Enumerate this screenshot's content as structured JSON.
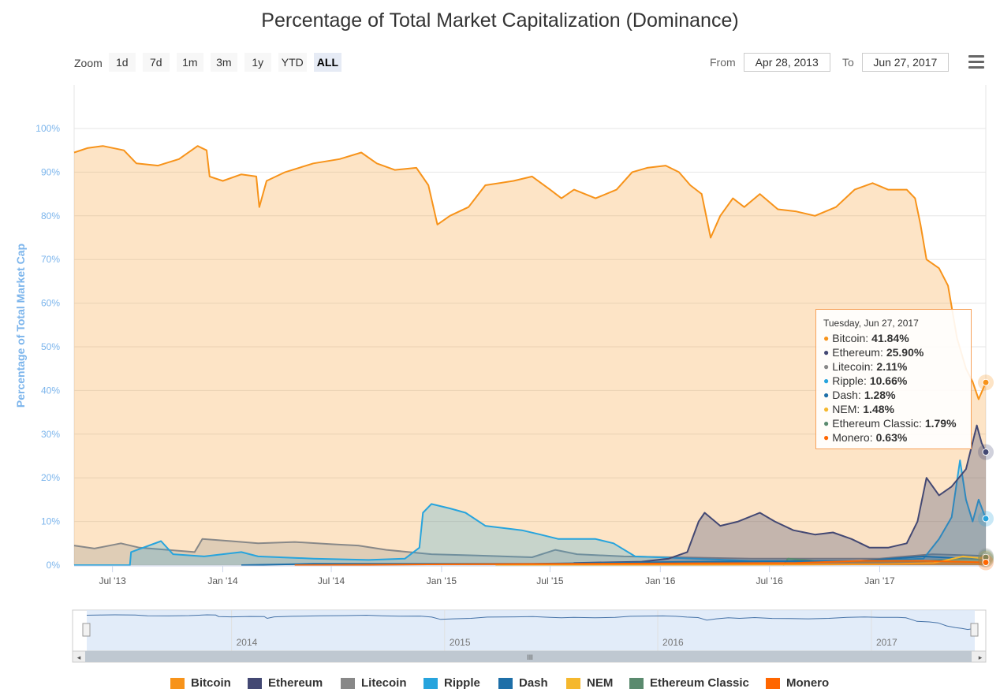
{
  "title": "Percentage of Total Market Capitalization (Dominance)",
  "toolbar": {
    "zoom_label": "Zoom",
    "zoom_buttons": [
      "1d",
      "7d",
      "1m",
      "3m",
      "1y",
      "YTD",
      "ALL"
    ],
    "active_zoom": "ALL",
    "from_label": "From",
    "from_value": "Apr 28, 2013",
    "to_label": "To",
    "to_value": "Jun 27, 2017"
  },
  "tooltip": {
    "date": "Tuesday, Jun 27, 2017",
    "rows": [
      {
        "name": "Bitcoin",
        "value": "41.84%",
        "color": "#f7931a"
      },
      {
        "name": "Ethereum",
        "value": "25.90%",
        "color": "#434873"
      },
      {
        "name": "Litecoin",
        "value": "2.11%",
        "color": "#888888"
      },
      {
        "name": "Ripple",
        "value": "10.66%",
        "color": "#27a4dd"
      },
      {
        "name": "Dash",
        "value": "1.28%",
        "color": "#1e6fa8"
      },
      {
        "name": "NEM",
        "value": "1.48%",
        "color": "#f5b82e"
      },
      {
        "name": "Ethereum Classic",
        "value": "1.79%",
        "color": "#5a8a6e"
      },
      {
        "name": "Monero",
        "value": "0.63%",
        "color": "#ff6600"
      }
    ]
  },
  "colors": {
    "Bitcoin": "#f7931a",
    "Ethereum": "#434873",
    "Litecoin": "#888888",
    "Ripple": "#27a4dd",
    "Dash": "#1e6fa8",
    "NEM": "#f5b82e",
    "Ethereum Classic": "#5a8a6e",
    "Monero": "#ff6600"
  },
  "chart_data": {
    "type": "area",
    "title": "Percentage of Total Market Capitalization (Dominance)",
    "ylabel": "Percentage of Total Market Cap",
    "ylim": [
      0,
      100
    ],
    "yticks": [
      "0%",
      "10%",
      "20%",
      "30%",
      "40%",
      "50%",
      "60%",
      "70%",
      "80%",
      "90%",
      "100%"
    ],
    "xlim": [
      "2013-04-28",
      "2017-06-27"
    ],
    "xticks": [
      {
        "date": "2013-07-01",
        "label": "Jul '13"
      },
      {
        "date": "2014-01-01",
        "label": "Jan '14"
      },
      {
        "date": "2014-07-01",
        "label": "Jul '14"
      },
      {
        "date": "2015-01-01",
        "label": "Jan '15"
      },
      {
        "date": "2015-07-01",
        "label": "Jul '15"
      },
      {
        "date": "2016-01-01",
        "label": "Jan '16"
      },
      {
        "date": "2016-07-01",
        "label": "Jul '16"
      },
      {
        "date": "2017-01-01",
        "label": "Jan '17"
      }
    ],
    "grid": true,
    "legend_position": "bottom",
    "series": [
      {
        "name": "Bitcoin",
        "points": [
          [
            "2013-04-28",
            94.5
          ],
          [
            "2013-05-20",
            95.5
          ],
          [
            "2013-06-15",
            96
          ],
          [
            "2013-07-20",
            95
          ],
          [
            "2013-08-10",
            92
          ],
          [
            "2013-09-15",
            91.5
          ],
          [
            "2013-10-20",
            93
          ],
          [
            "2013-11-20",
            96
          ],
          [
            "2013-12-05",
            95
          ],
          [
            "2013-12-10",
            89
          ],
          [
            "2014-01-01",
            88
          ],
          [
            "2014-02-01",
            89.5
          ],
          [
            "2014-02-26",
            89
          ],
          [
            "2014-03-03",
            82
          ],
          [
            "2014-03-15",
            88
          ],
          [
            "2014-04-15",
            90
          ],
          [
            "2014-06-01",
            92
          ],
          [
            "2014-07-15",
            93
          ],
          [
            "2014-08-20",
            94.5
          ],
          [
            "2014-09-15",
            92
          ],
          [
            "2014-10-15",
            90.5
          ],
          [
            "2014-11-20",
            91
          ],
          [
            "2014-12-10",
            87
          ],
          [
            "2014-12-25",
            78
          ],
          [
            "2015-01-15",
            80
          ],
          [
            "2015-02-15",
            82
          ],
          [
            "2015-03-15",
            87
          ],
          [
            "2015-05-01",
            88
          ],
          [
            "2015-06-01",
            89
          ],
          [
            "2015-07-01",
            86
          ],
          [
            "2015-07-20",
            84
          ],
          [
            "2015-08-10",
            86
          ],
          [
            "2015-09-15",
            84
          ],
          [
            "2015-10-20",
            86
          ],
          [
            "2015-11-15",
            90
          ],
          [
            "2015-12-10",
            91
          ],
          [
            "2016-01-10",
            91.5
          ],
          [
            "2016-02-01",
            90
          ],
          [
            "2016-02-20",
            87
          ],
          [
            "2016-03-10",
            85
          ],
          [
            "2016-03-25",
            75
          ],
          [
            "2016-04-10",
            80
          ],
          [
            "2016-05-01",
            84
          ],
          [
            "2016-05-20",
            82
          ],
          [
            "2016-06-15",
            85
          ],
          [
            "2016-07-15",
            81.5
          ],
          [
            "2016-08-15",
            81
          ],
          [
            "2016-09-15",
            80
          ],
          [
            "2016-10-20",
            82
          ],
          [
            "2016-11-20",
            86
          ],
          [
            "2016-12-20",
            87.5
          ],
          [
            "2017-01-15",
            86
          ],
          [
            "2017-02-15",
            86
          ],
          [
            "2017-03-01",
            84
          ],
          [
            "2017-03-10",
            78
          ],
          [
            "2017-03-20",
            70
          ],
          [
            "2017-04-10",
            68
          ],
          [
            "2017-04-25",
            64
          ],
          [
            "2017-05-10",
            52
          ],
          [
            "2017-05-25",
            45
          ],
          [
            "2017-06-05",
            42
          ],
          [
            "2017-06-15",
            38
          ],
          [
            "2017-06-27",
            41.84
          ]
        ]
      },
      {
        "name": "Litecoin",
        "points": [
          [
            "2013-04-28",
            4.5
          ],
          [
            "2013-06-01",
            3.8
          ],
          [
            "2013-07-15",
            5
          ],
          [
            "2013-08-15",
            4
          ],
          [
            "2013-10-01",
            3.5
          ],
          [
            "2013-11-15",
            3
          ],
          [
            "2013-11-28",
            6
          ],
          [
            "2014-01-15",
            5.5
          ],
          [
            "2014-03-01",
            5
          ],
          [
            "2014-05-01",
            5.3
          ],
          [
            "2014-07-01",
            4.8
          ],
          [
            "2014-08-15",
            4.5
          ],
          [
            "2014-10-01",
            3.5
          ],
          [
            "2014-12-15",
            2.5
          ],
          [
            "2015-03-01",
            2.2
          ],
          [
            "2015-06-01",
            1.8
          ],
          [
            "2015-07-10",
            3.5
          ],
          [
            "2015-08-15",
            2.5
          ],
          [
            "2015-11-01",
            2
          ],
          [
            "2016-06-01",
            1.5
          ],
          [
            "2017-01-01",
            1.5
          ],
          [
            "2017-03-30",
            2.5
          ],
          [
            "2017-06-27",
            2.11
          ]
        ]
      },
      {
        "name": "Ripple",
        "points": [
          [
            "2013-04-28",
            0
          ],
          [
            "2013-07-30",
            0
          ],
          [
            "2013-08-01",
            3
          ],
          [
            "2013-09-20",
            5.5
          ],
          [
            "2013-10-10",
            2.5
          ],
          [
            "2013-12-01",
            2
          ],
          [
            "2014-02-01",
            3
          ],
          [
            "2014-03-01",
            2
          ],
          [
            "2014-06-01",
            1.5
          ],
          [
            "2014-09-01",
            1.2
          ],
          [
            "2014-11-01",
            1.5
          ],
          [
            "2014-11-25",
            4
          ],
          [
            "2014-12-01",
            12
          ],
          [
            "2014-12-15",
            14
          ],
          [
            "2015-01-15",
            13
          ],
          [
            "2015-02-10",
            12
          ],
          [
            "2015-03-15",
            9
          ],
          [
            "2015-05-15",
            8
          ],
          [
            "2015-06-15",
            7
          ],
          [
            "2015-07-15",
            6
          ],
          [
            "2015-09-15",
            6
          ],
          [
            "2015-10-15",
            5
          ],
          [
            "2015-11-20",
            2
          ],
          [
            "2016-06-01",
            1
          ],
          [
            "2016-12-01",
            1
          ],
          [
            "2017-03-15",
            1.5
          ],
          [
            "2017-04-10",
            6
          ],
          [
            "2017-05-01",
            11
          ],
          [
            "2017-05-15",
            24
          ],
          [
            "2017-05-25",
            15
          ],
          [
            "2017-06-05",
            10
          ],
          [
            "2017-06-15",
            15
          ],
          [
            "2017-06-27",
            10.66
          ]
        ]
      },
      {
        "name": "Ethereum",
        "points": [
          [
            "2015-08-07",
            0
          ],
          [
            "2015-08-10",
            0.5
          ],
          [
            "2015-12-01",
            0.8
          ],
          [
            "2016-01-15",
            1.5
          ],
          [
            "2016-02-15",
            3
          ],
          [
            "2016-03-05",
            10
          ],
          [
            "2016-03-15",
            12
          ],
          [
            "2016-04-10",
            9
          ],
          [
            "2016-05-10",
            10
          ],
          [
            "2016-06-15",
            12
          ],
          [
            "2016-07-10",
            10
          ],
          [
            "2016-08-10",
            8
          ],
          [
            "2016-09-15",
            7
          ],
          [
            "2016-10-15",
            7.5
          ],
          [
            "2016-11-15",
            6
          ],
          [
            "2016-12-15",
            4
          ],
          [
            "2017-01-15",
            4
          ],
          [
            "2017-02-15",
            5
          ],
          [
            "2017-03-05",
            10
          ],
          [
            "2017-03-20",
            20
          ],
          [
            "2017-04-10",
            16
          ],
          [
            "2017-05-01",
            18
          ],
          [
            "2017-05-25",
            22
          ],
          [
            "2017-06-12",
            32
          ],
          [
            "2017-06-20",
            28
          ],
          [
            "2017-06-27",
            25.9
          ]
        ]
      },
      {
        "name": "Dash",
        "points": [
          [
            "2014-02-01",
            0
          ],
          [
            "2014-06-01",
            0.3
          ],
          [
            "2015-06-01",
            0.3
          ],
          [
            "2016-03-01",
            0.8
          ],
          [
            "2016-12-01",
            1
          ],
          [
            "2017-03-15",
            2
          ],
          [
            "2017-06-27",
            1.28
          ]
        ]
      },
      {
        "name": "NEM",
        "points": [
          [
            "2015-04-01",
            0
          ],
          [
            "2016-06-01",
            0.1
          ],
          [
            "2017-01-01",
            0.2
          ],
          [
            "2017-04-01",
            0.5
          ],
          [
            "2017-05-20",
            2
          ],
          [
            "2017-06-27",
            1.48
          ]
        ]
      },
      {
        "name": "Ethereum Classic",
        "points": [
          [
            "2016-07-24",
            0
          ],
          [
            "2016-08-01",
            1.5
          ],
          [
            "2016-10-01",
            0.8
          ],
          [
            "2017-03-15",
            0.9
          ],
          [
            "2017-06-10",
            1.6
          ],
          [
            "2017-06-27",
            1.79
          ]
        ]
      },
      {
        "name": "Monero",
        "points": [
          [
            "2014-05-01",
            0
          ],
          [
            "2015-01-01",
            0.2
          ],
          [
            "2016-08-15",
            0.5
          ],
          [
            "2016-12-01",
            1
          ],
          [
            "2017-03-15",
            1
          ],
          [
            "2017-06-27",
            0.63
          ]
        ]
      }
    ],
    "navigator": {
      "xticks": [
        "2014",
        "2015",
        "2016",
        "2017"
      ]
    }
  },
  "legend": {
    "items": [
      "Bitcoin",
      "Ethereum",
      "Litecoin",
      "Ripple",
      "Dash",
      "NEM",
      "Ethereum Classic",
      "Monero"
    ]
  }
}
